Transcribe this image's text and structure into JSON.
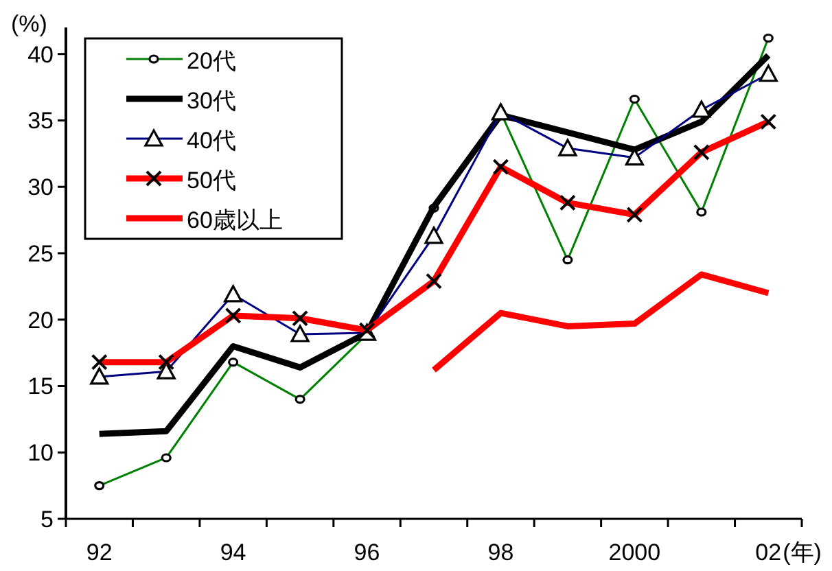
{
  "chart_data": {
    "type": "line",
    "xlabel": "(年)",
    "ylabel": "(%)",
    "categories": [
      "92",
      null,
      "94",
      null,
      "96",
      null,
      "98",
      null,
      "2000",
      null,
      "02"
    ],
    "ylim": [
      5,
      42
    ],
    "yticks": [
      5,
      10,
      15,
      20,
      25,
      30,
      35,
      40
    ],
    "legend": "top left",
    "grid": false,
    "series": [
      {
        "name": "20代",
        "color": "#008000",
        "marker": "circle",
        "values": [
          7.5,
          9.6,
          16.8,
          14.0,
          18.9,
          28.4,
          35.6,
          24.5,
          36.6,
          28.1,
          41.2
        ]
      },
      {
        "name": "30代",
        "color": "#000000",
        "marker": "none",
        "values": [
          11.4,
          11.6,
          18.0,
          16.4,
          19.0,
          28.5,
          35.4,
          34.1,
          32.8,
          34.9,
          39.9
        ]
      },
      {
        "name": "40代",
        "color": "#000080",
        "marker": "triangle",
        "values": [
          15.7,
          16.1,
          21.9,
          18.9,
          19.0,
          26.3,
          35.6,
          32.9,
          32.2,
          35.8,
          38.5
        ]
      },
      {
        "name": "50代",
        "color": "#ff0000",
        "marker": "cross",
        "values": [
          16.8,
          16.8,
          20.3,
          20.1,
          19.2,
          22.9,
          31.5,
          28.8,
          27.9,
          32.6,
          34.9
        ]
      },
      {
        "name": "60歳以上",
        "color": "#ff0000",
        "marker": "none",
        "values": [
          null,
          null,
          null,
          null,
          null,
          16.2,
          20.5,
          19.5,
          19.7,
          23.4,
          22.0
        ]
      }
    ]
  }
}
